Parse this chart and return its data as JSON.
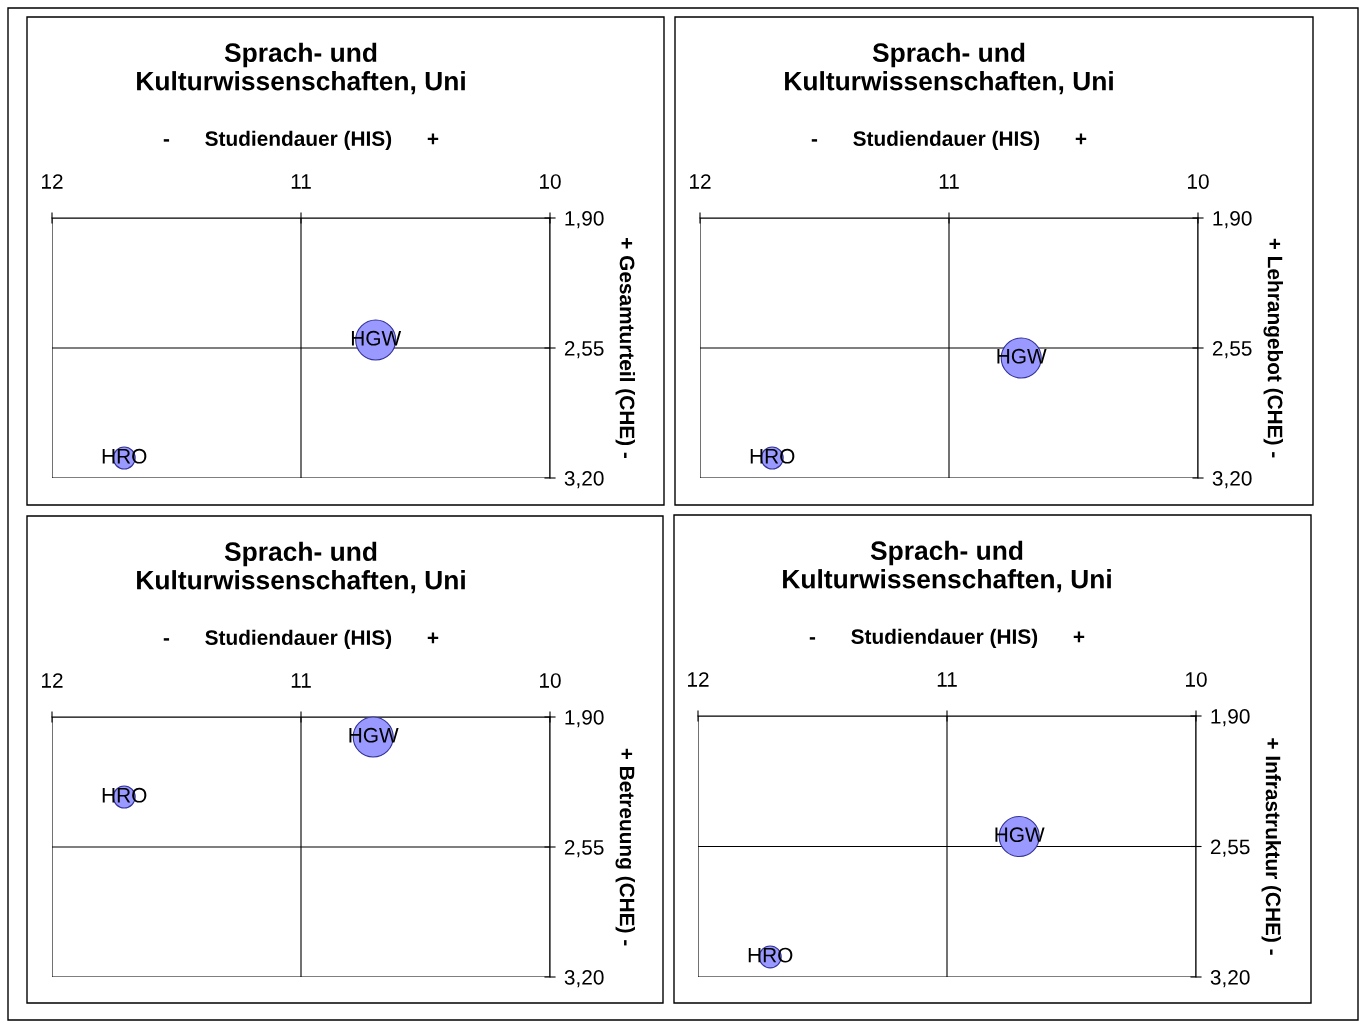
{
  "chart_data": [
    {
      "type": "bubble",
      "title": "Sprach- und\nKulturwissenschaften, Uni",
      "xlabel": "-      Studiendauer (HIS)      +",
      "ylabel": "+ Gesamturteil (CHE) -",
      "xlim": [
        12,
        10
      ],
      "xticks": [
        12,
        11,
        10
      ],
      "ylim": [
        3.2,
        1.9
      ],
      "yticks": [
        {
          "value": 1.9,
          "label": "1,90"
        },
        {
          "value": 2.55,
          "label": "2,55"
        },
        {
          "value": 3.2,
          "label": "3,20"
        }
      ],
      "grid": true,
      "legend": false,
      "series": [
        {
          "name": "HGW",
          "color": "#9999ff",
          "x": [
            10.7
          ],
          "values": [
            2.51
          ],
          "sizes": [
            1
          ]
        },
        {
          "name": "HRO",
          "color": "#9999ff",
          "x": [
            11.71
          ],
          "values": [
            3.1
          ],
          "sizes": [
            0.3
          ]
        }
      ]
    },
    {
      "type": "bubble",
      "title": "Sprach- und\nKulturwissenschaften, Uni",
      "xlabel": "-      Studiendauer (HIS)      +",
      "ylabel": "+ Lehrangebot (CHE) -",
      "xlim": [
        12,
        10
      ],
      "xticks": [
        12,
        11,
        10
      ],
      "ylim": [
        3.2,
        1.9
      ],
      "yticks": [
        {
          "value": 1.9,
          "label": "1,90"
        },
        {
          "value": 2.55,
          "label": "2,55"
        },
        {
          "value": 3.2,
          "label": "3,20"
        }
      ],
      "grid": true,
      "legend": false,
      "series": [
        {
          "name": "HGW",
          "color": "#9999ff",
          "x": [
            10.71
          ],
          "values": [
            2.6
          ],
          "sizes": [
            1
          ]
        },
        {
          "name": "HRO",
          "color": "#9999ff",
          "x": [
            11.71
          ],
          "values": [
            3.1
          ],
          "sizes": [
            0.3
          ]
        }
      ]
    },
    {
      "type": "bubble",
      "title": "Sprach- und\nKulturwissenschaften, Uni",
      "xlabel": "-      Studiendauer (HIS)      +",
      "ylabel": "+ Betreuung (CHE) -",
      "xlim": [
        12,
        10
      ],
      "xticks": [
        12,
        11,
        10
      ],
      "ylim": [
        3.2,
        1.9
      ],
      "yticks": [
        {
          "value": 1.9,
          "label": "1,90"
        },
        {
          "value": 2.55,
          "label": "2,55"
        },
        {
          "value": 3.2,
          "label": "3,20"
        }
      ],
      "grid": true,
      "legend": false,
      "series": [
        {
          "name": "HGW",
          "color": "#9999ff",
          "x": [
            10.71
          ],
          "values": [
            2.0
          ],
          "sizes": [
            1
          ]
        },
        {
          "name": "HRO",
          "color": "#9999ff",
          "x": [
            11.71
          ],
          "values": [
            2.3
          ],
          "sizes": [
            0.3
          ]
        }
      ]
    },
    {
      "type": "bubble",
      "title": "Sprach- und\nKulturwissenschaften, Uni",
      "xlabel": "-      Studiendauer (HIS)      +",
      "ylabel": "+ Infrastruktur (CHE) -",
      "xlim": [
        12,
        10
      ],
      "xticks": [
        12,
        11,
        10
      ],
      "ylim": [
        3.2,
        1.9
      ],
      "yticks": [
        {
          "value": 1.9,
          "label": "1,90"
        },
        {
          "value": 2.55,
          "label": "2,55"
        },
        {
          "value": 3.2,
          "label": "3,20"
        }
      ],
      "grid": true,
      "legend": false,
      "series": [
        {
          "name": "HGW",
          "color": "#9999ff",
          "x": [
            10.71
          ],
          "values": [
            2.5
          ],
          "sizes": [
            1
          ]
        },
        {
          "name": "HRO",
          "color": "#9999ff",
          "x": [
            11.71
          ],
          "values": [
            3.1
          ],
          "sizes": [
            0.3
          ]
        }
      ]
    }
  ]
}
